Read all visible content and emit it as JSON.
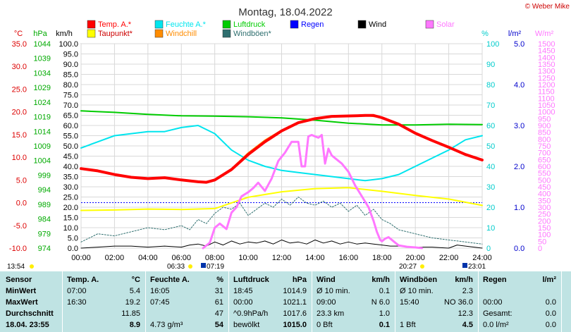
{
  "title": "Montag, 18.04.2022",
  "copyright": "© Weber Mike",
  "legend": [
    {
      "label": "Temp. A.*",
      "color": "#ff0000"
    },
    {
      "label": "Feuchte A.*",
      "color": "#00e5ee"
    },
    {
      "label": "Luftdruck",
      "color": "#00cc00"
    },
    {
      "label": "Regen",
      "color": "#0000ff"
    },
    {
      "label": "Wind",
      "color": "#000000"
    },
    {
      "label": "Solar",
      "color": "#ff77ff"
    },
    {
      "label": "Taupunkt*",
      "color": "#ffff00"
    },
    {
      "label": "Windchill",
      "color": "#ff8c00"
    },
    {
      "label": "Windböen*",
      "color": "#2f6f6f"
    }
  ],
  "units": {
    "temp": "°C",
    "pressure": "hPa",
    "wind": "km/h",
    "humidity": "%",
    "rain": "l/m²",
    "solar": "W/m²"
  },
  "bottom_labels": {
    "time_left": "13:54",
    "sunrise_dawn": "06:33",
    "sunrise": "07:19",
    "sunset": "20:27",
    "dusk": "23:01"
  },
  "chart_data": {
    "type": "line",
    "x_ticks": [
      "00:00",
      "02:00",
      "04:00",
      "06:00",
      "08:00",
      "10:00",
      "12:00",
      "14:00",
      "16:00",
      "18:00",
      "20:00",
      "22:00",
      "24:00"
    ],
    "xlim": [
      0,
      24
    ],
    "axes": {
      "temp": {
        "ticks": [
          "35.0",
          "30.0",
          "25.0",
          "20.0",
          "15.0",
          "10.0",
          "5.0",
          "0.0",
          "-5.0",
          "-10.0"
        ],
        "ylim": [
          -10,
          35
        ]
      },
      "pressure": {
        "ticks": [
          "1044",
          "1039",
          "1034",
          "1029",
          "1024",
          "1019",
          "1014",
          "1009",
          "1004",
          "999",
          "994",
          "989",
          "984",
          "979",
          "974"
        ],
        "ylim": [
          974,
          1044
        ]
      },
      "wind": {
        "ticks": [
          "100.0",
          "95.0",
          "90.0",
          "85.0",
          "80.0",
          "75.0",
          "70.0",
          "65.0",
          "60.0",
          "55.0",
          "50.0",
          "45.0",
          "40.0",
          "35.0",
          "30.0",
          "25.0",
          "20.0",
          "15.0",
          "10.0",
          "5.0",
          "0.0"
        ],
        "ylim": [
          0,
          100
        ]
      },
      "humidity": {
        "ticks": [
          "100",
          "90",
          "80",
          "70",
          "60",
          "50",
          "40",
          "30",
          "20",
          "10",
          "0"
        ],
        "ylim": [
          0,
          100
        ]
      },
      "rain": {
        "ticks": [
          "5.0",
          "4.0",
          "3.0",
          "2.0",
          "1.0",
          "0.0"
        ],
        "ylim": [
          0,
          5
        ]
      },
      "solar": {
        "ticks": [
          "1500",
          "1450",
          "1400",
          "1350",
          "1300",
          "1250",
          "1200",
          "1150",
          "1100",
          "1050",
          "1000",
          "950",
          "900",
          "850",
          "800",
          "750",
          "700",
          "650",
          "600",
          "550",
          "500",
          "450",
          "400",
          "350",
          "300",
          "250",
          "200",
          "150",
          "100",
          "50",
          "0"
        ],
        "ylim": [
          0,
          1500
        ]
      }
    },
    "series": [
      {
        "name": "Temp. A.*",
        "axis": "temp",
        "color": "#ff0000",
        "width": 4,
        "x": [
          0,
          1,
          2,
          3,
          4,
          5,
          6,
          7,
          7.5,
          8,
          9,
          10,
          11,
          12,
          13,
          14,
          15,
          16,
          17,
          17.5,
          18,
          19,
          20,
          21,
          22,
          23,
          24
        ],
        "y": [
          7.5,
          7.0,
          6.2,
          5.6,
          5.3,
          5.5,
          5.0,
          4.6,
          4.5,
          5.0,
          7.3,
          10.6,
          13.4,
          15.8,
          17.6,
          18.5,
          19.0,
          19.1,
          19.2,
          19.2,
          18.7,
          17.3,
          15.3,
          13.7,
          12.2,
          10.6,
          9.4
        ]
      },
      {
        "name": "Feuchte A.*",
        "axis": "humidity",
        "color": "#00e5ee",
        "width": 2,
        "x": [
          0,
          1,
          2,
          3,
          4,
          5,
          6,
          7,
          8,
          9,
          10,
          11,
          12,
          13,
          14,
          15,
          16,
          17,
          18,
          19,
          20,
          21,
          22,
          23,
          24
        ],
        "y": [
          49,
          52,
          55,
          56,
          57,
          57,
          59,
          60,
          56,
          48,
          43,
          40,
          38,
          37,
          36,
          35,
          34,
          33,
          34,
          36,
          40,
          44,
          48,
          53,
          55
        ]
      },
      {
        "name": "Luftdruck",
        "axis": "pressure",
        "color": "#00cc00",
        "width": 2,
        "x": [
          0,
          2,
          4,
          6,
          8,
          10,
          12,
          14,
          16,
          18,
          20,
          22,
          24
        ],
        "y": [
          1021.0,
          1020.5,
          1019.8,
          1019.3,
          1019.2,
          1019.0,
          1018.6,
          1017.8,
          1016.8,
          1016.2,
          1016.2,
          1016.4,
          1016.3
        ]
      },
      {
        "name": "Taupunkt*",
        "axis": "temp",
        "color": "#ffff00",
        "width": 2,
        "x": [
          0,
          2,
          4,
          6,
          8,
          10,
          12,
          14,
          16,
          18,
          20,
          22,
          24
        ],
        "y": [
          -1.7,
          -1.6,
          -1.4,
          -1.5,
          -1.3,
          1.2,
          2.4,
          3.1,
          3.3,
          2.5,
          1.6,
          0.8,
          -0.6
        ]
      },
      {
        "name": "Windchill",
        "axis": "temp",
        "color": "#ff8c00",
        "width": 1.5,
        "x": [
          8,
          9,
          10,
          11,
          12,
          13,
          14,
          15,
          16,
          17,
          18
        ],
        "y": [
          5.0,
          7.5,
          11.0,
          13.8,
          16.0,
          17.6,
          18.5,
          19.0,
          19.1,
          19.2,
          18.7
        ]
      },
      {
        "name": "Solar",
        "axis": "solar",
        "color": "#ff77ff",
        "width": 3,
        "x": [
          7.3,
          7.7,
          8.0,
          8.3,
          8.7,
          9.0,
          9.3,
          9.6,
          10.0,
          10.3,
          10.6,
          11.0,
          11.4,
          11.8,
          12.2,
          12.6,
          13.0,
          13.2,
          13.4,
          13.6,
          13.8,
          14.0,
          14.2,
          14.4,
          14.6,
          14.8,
          15.0,
          15.2,
          15.6,
          16.0,
          16.4,
          16.8,
          17.2,
          17.5,
          17.7,
          17.9,
          18.0,
          18.2,
          18.4,
          18.6,
          18.8,
          19.0,
          19.5,
          20.0,
          20.4
        ],
        "y": [
          0,
          40,
          150,
          180,
          140,
          260,
          300,
          380,
          410,
          440,
          480,
          420,
          510,
          640,
          700,
          780,
          780,
          600,
          600,
          820,
          830,
          820,
          810,
          830,
          620,
          730,
          680,
          660,
          620,
          560,
          460,
          380,
          300,
          200,
          120,
          60,
          50,
          70,
          80,
          60,
          40,
          20,
          10,
          5,
          0
        ]
      },
      {
        "name": "Wind",
        "axis": "wind",
        "color": "#000000",
        "width": 1,
        "x": [
          0,
          1,
          2,
          3,
          4,
          5,
          6,
          6.5,
          7,
          7.5,
          8,
          8.5,
          9,
          9.5,
          10,
          10.5,
          11,
          11.5,
          12,
          12.5,
          13,
          13.5,
          14,
          14.5,
          15,
          15.5,
          16,
          16.5,
          17,
          17.5,
          18,
          18.5,
          19,
          20,
          21,
          22,
          22.5,
          23,
          24
        ],
        "y": [
          0,
          0.5,
          1,
          1,
          0.5,
          1,
          0.5,
          1.5,
          2,
          1,
          3,
          1.5,
          3.5,
          2,
          3,
          2.5,
          3.5,
          2,
          4,
          2.5,
          3,
          2,
          4,
          2.5,
          3.5,
          2,
          3,
          2,
          2.5,
          2,
          1.5,
          1,
          1,
          0.5,
          0.5,
          0,
          1.5,
          1,
          0
        ]
      },
      {
        "name": "Windböen*",
        "axis": "wind",
        "color": "#2f6f6f",
        "width": 1,
        "dashed": true,
        "x": [
          0,
          1,
          2,
          3,
          4,
          5,
          6,
          6.5,
          7,
          7.5,
          8,
          8.5,
          9,
          9.5,
          10,
          10.5,
          11,
          11.5,
          12,
          12.5,
          13,
          13.5,
          14,
          14.5,
          15,
          15.5,
          16,
          16.5,
          17,
          17.5,
          18,
          18.5,
          19,
          20,
          21,
          22,
          23,
          24
        ],
        "y": [
          3,
          7,
          6,
          8,
          10,
          9,
          11,
          9,
          14,
          12,
          17,
          20,
          19,
          22,
          16,
          19,
          22,
          20,
          24,
          21,
          25,
          22,
          21,
          23,
          20,
          22,
          18,
          21,
          16,
          19,
          14,
          12,
          9,
          7,
          5,
          4,
          3,
          2
        ]
      }
    ],
    "reference_lines": [
      {
        "axis": "temp",
        "value": 0,
        "color": "#0000ff",
        "style": "dotted"
      }
    ],
    "grid": true
  },
  "table": {
    "headers": {
      "sensor": "Sensor",
      "temp": "Temp. A.",
      "temp_unit": "°C",
      "hum": "Feuchte A.",
      "hum_unit": "%",
      "press": "Luftdruck",
      "press_unit": "hPa",
      "wind": "Wind",
      "wind_unit": "km/h",
      "gust": "Windböen",
      "gust_unit": "km/h",
      "rain": "Regen",
      "rain_unit": "l/m²"
    },
    "row_labels": [
      "MinWert",
      "MaxWert",
      "Durchschnitt",
      "18.04. 23:55"
    ],
    "temp_time": [
      "07:00",
      "16:30",
      "",
      ""
    ],
    "temp_val": [
      "5.4",
      "19.2",
      "11.85",
      "8.9"
    ],
    "hum_time": [
      "16:05",
      "07:45",
      "",
      "4.73 g/m³"
    ],
    "hum_val": [
      "31",
      "61",
      "47",
      "54"
    ],
    "press_time": [
      "18:45",
      "00:00",
      "^0.9hPa/h",
      "bewölkt"
    ],
    "press_val": [
      "1014.9",
      "1021.1",
      "1017.6",
      "1015.0"
    ],
    "wind_time": [
      "Ø 10 min.",
      "09:00",
      "23.3 km",
      "0 Bft"
    ],
    "wind_val": [
      "0.1",
      "N 6.0",
      "1.0",
      "0.1"
    ],
    "gust_time": [
      "Ø 10 min.",
      "15:40",
      "",
      "1 Bft"
    ],
    "gust_val": [
      "2.3",
      "NO 36.0",
      "12.3",
      "4.5"
    ],
    "rain_time": [
      "",
      "00:00",
      "Gesamt:",
      "0.0 l/m²"
    ],
    "rain_val": [
      "",
      "0.0",
      "0.0",
      "0.0"
    ]
  }
}
